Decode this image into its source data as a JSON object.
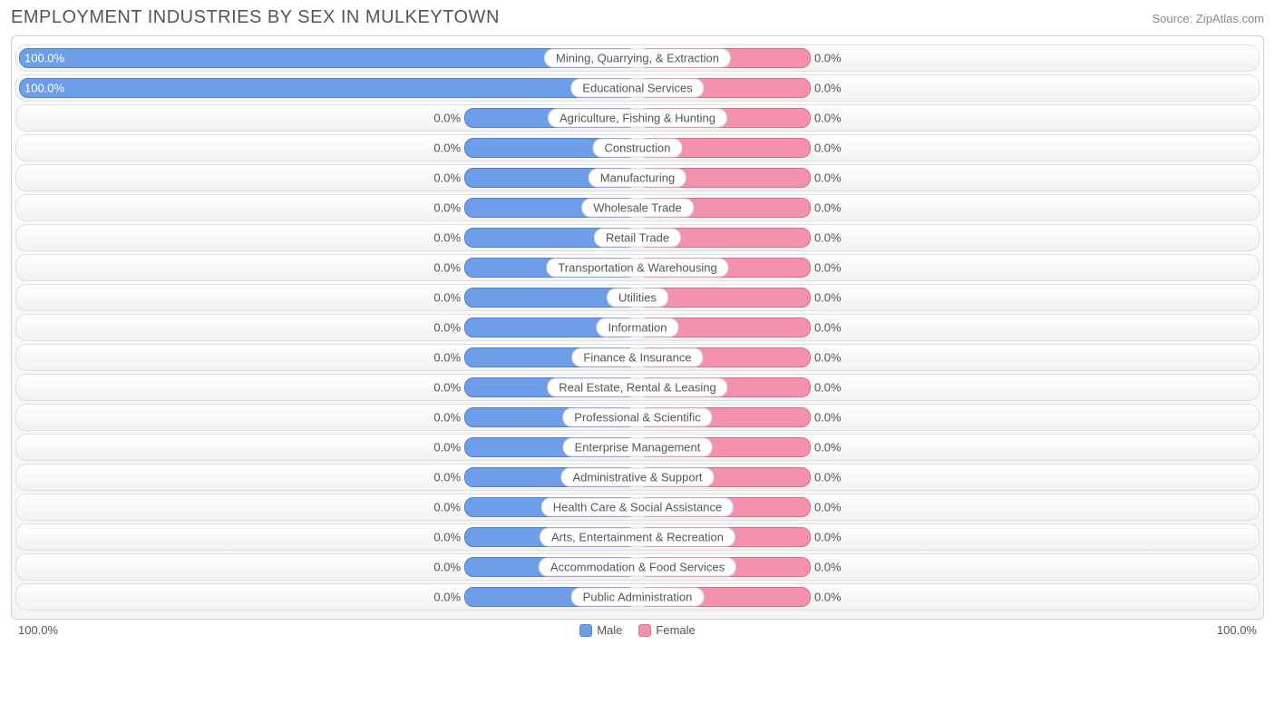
{
  "title": "EMPLOYMENT INDUSTRIES BY SEX IN MULKEYTOWN",
  "source": "Source: ZipAtlas.com",
  "colors": {
    "male": "#6f9ee8",
    "male_border": "#4f7fd0",
    "female": "#f492ae",
    "female_border": "#e06a8e",
    "text": "#555555",
    "row_border": "#e0e0e0"
  },
  "chart": {
    "type": "diverging-bar",
    "axis_left_label": "100.0%",
    "axis_right_label": "100.0%",
    "default_stub_pct": 14,
    "rows": [
      {
        "label": "Mining, Quarrying, & Extraction",
        "male": 100.0,
        "female": 0.0
      },
      {
        "label": "Educational Services",
        "male": 100.0,
        "female": 0.0
      },
      {
        "label": "Agriculture, Fishing & Hunting",
        "male": 0.0,
        "female": 0.0
      },
      {
        "label": "Construction",
        "male": 0.0,
        "female": 0.0
      },
      {
        "label": "Manufacturing",
        "male": 0.0,
        "female": 0.0
      },
      {
        "label": "Wholesale Trade",
        "male": 0.0,
        "female": 0.0
      },
      {
        "label": "Retail Trade",
        "male": 0.0,
        "female": 0.0
      },
      {
        "label": "Transportation & Warehousing",
        "male": 0.0,
        "female": 0.0
      },
      {
        "label": "Utilities",
        "male": 0.0,
        "female": 0.0
      },
      {
        "label": "Information",
        "male": 0.0,
        "female": 0.0
      },
      {
        "label": "Finance & Insurance",
        "male": 0.0,
        "female": 0.0
      },
      {
        "label": "Real Estate, Rental & Leasing",
        "male": 0.0,
        "female": 0.0
      },
      {
        "label": "Professional & Scientific",
        "male": 0.0,
        "female": 0.0
      },
      {
        "label": "Enterprise Management",
        "male": 0.0,
        "female": 0.0
      },
      {
        "label": "Administrative & Support",
        "male": 0.0,
        "female": 0.0
      },
      {
        "label": "Health Care & Social Assistance",
        "male": 0.0,
        "female": 0.0
      },
      {
        "label": "Arts, Entertainment & Recreation",
        "male": 0.0,
        "female": 0.0
      },
      {
        "label": "Accommodation & Food Services",
        "male": 0.0,
        "female": 0.0
      },
      {
        "label": "Public Administration",
        "male": 0.0,
        "female": 0.0
      }
    ]
  },
  "legend": {
    "male": "Male",
    "female": "Female"
  }
}
